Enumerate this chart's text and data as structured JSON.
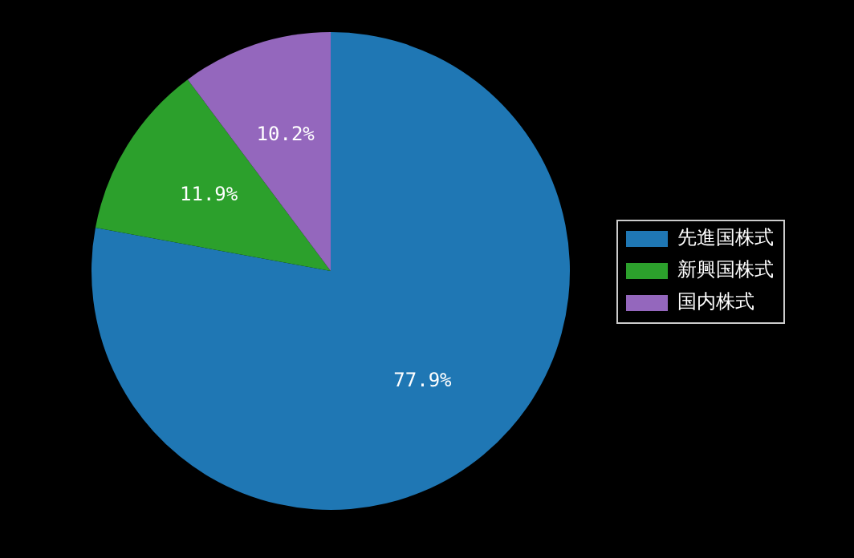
{
  "chart_data": {
    "type": "pie",
    "categories": [
      "先進国株式",
      "新興国株式",
      "国内株式"
    ],
    "values": [
      77.9,
      11.9,
      10.2
    ],
    "colors": [
      "#1f77b4",
      "#2ca02c",
      "#9467bd"
    ],
    "value_labels": [
      "77.9%",
      "11.9%",
      "10.2%"
    ],
    "legend": "right"
  }
}
